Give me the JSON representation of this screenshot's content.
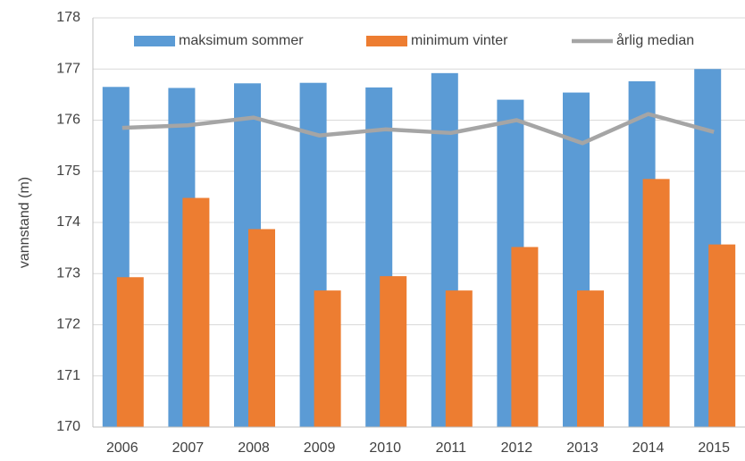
{
  "chart_data": {
    "type": "bar",
    "y_label": "vannstand (m)",
    "categories": [
      "2006",
      "2007",
      "2008",
      "2009",
      "2010",
      "2011",
      "2012",
      "2013",
      "2014",
      "2015"
    ],
    "series": [
      {
        "name": "maksimum sommer",
        "color": "#5b9bd5",
        "type": "bar",
        "values": [
          176.65,
          176.63,
          176.72,
          176.73,
          176.64,
          176.92,
          176.4,
          176.54,
          176.76,
          177.0
        ]
      },
      {
        "name": "minimum vinter",
        "color": "#ed7d31",
        "type": "bar",
        "values": [
          172.93,
          174.48,
          173.87,
          172.67,
          172.95,
          172.67,
          173.52,
          172.67,
          174.85,
          173.57
        ]
      },
      {
        "name": "årlig median",
        "color": "#a5a5a5",
        "type": "line",
        "values": [
          175.85,
          175.9,
          176.05,
          175.7,
          175.82,
          175.75,
          176.0,
          175.55,
          176.12,
          175.77
        ]
      }
    ],
    "ylim": [
      170,
      178
    ],
    "yticks": [
      170,
      171,
      172,
      173,
      174,
      175,
      176,
      177,
      178
    ],
    "grid": true,
    "legend": "top"
  }
}
